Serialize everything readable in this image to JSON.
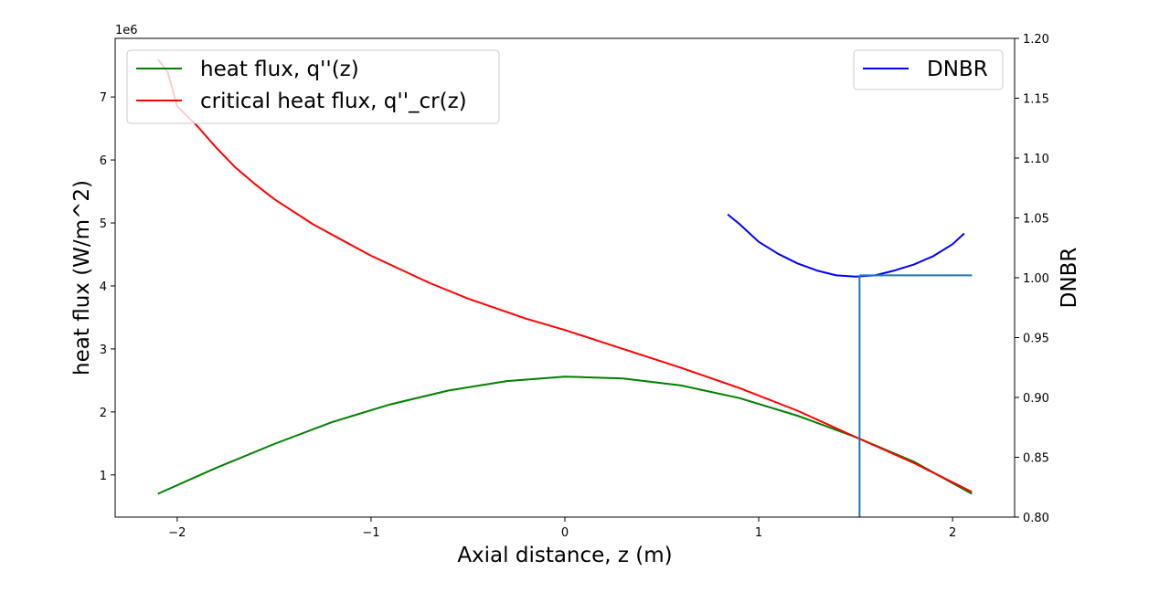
{
  "chart_data": {
    "type": "line",
    "xlabel": "Axial distance, z (m)",
    "ylabel_left": "heat flux (W/m^2)",
    "ylabel_right": "DNBR",
    "left_offset_label": "1e6",
    "xlim": [
      -2.32,
      2.32
    ],
    "ylim_left": [
      0.33,
      7.93
    ],
    "ylim_right": [
      0.8,
      1.2
    ],
    "xticks": [
      {
        "value": -2,
        "label": "−2"
      },
      {
        "value": -1,
        "label": "−1"
      },
      {
        "value": 0,
        "label": "0"
      },
      {
        "value": 1,
        "label": "1"
      },
      {
        "value": 2,
        "label": "2"
      }
    ],
    "yticks_left": [
      {
        "value": 1,
        "label": "1"
      },
      {
        "value": 2,
        "label": "2"
      },
      {
        "value": 3,
        "label": "3"
      },
      {
        "value": 4,
        "label": "4"
      },
      {
        "value": 5,
        "label": "5"
      },
      {
        "value": 6,
        "label": "6"
      },
      {
        "value": 7,
        "label": "7"
      }
    ],
    "yticks_right": [
      {
        "value": 0.8,
        "label": "0.80"
      },
      {
        "value": 0.85,
        "label": "0.85"
      },
      {
        "value": 0.9,
        "label": "0.90"
      },
      {
        "value": 0.95,
        "label": "0.95"
      },
      {
        "value": 1.0,
        "label": "1.00"
      },
      {
        "value": 1.05,
        "label": "1.05"
      },
      {
        "value": 1.1,
        "label": "1.10"
      },
      {
        "value": 1.15,
        "label": "1.15"
      },
      {
        "value": 1.2,
        "label": "1.20"
      }
    ],
    "grid": false,
    "series": [
      {
        "name": "heat flux, q''(z)",
        "axis": "left",
        "color": "#008000",
        "x": [
          -2.1,
          -1.8,
          -1.5,
          -1.2,
          -0.9,
          -0.6,
          -0.3,
          0.0,
          0.3,
          0.6,
          0.9,
          1.2,
          1.5,
          1.8,
          2.1
        ],
        "y": [
          0.7,
          1.11,
          1.49,
          1.84,
          2.12,
          2.34,
          2.49,
          2.56,
          2.53,
          2.42,
          2.22,
          1.94,
          1.6,
          1.21,
          0.7
        ]
      },
      {
        "name": "critical heat flux, q''_cr(z)",
        "axis": "left",
        "color": "#ff0000",
        "x": [
          -2.1,
          -2.05,
          -2.0,
          -1.9,
          -1.8,
          -1.7,
          -1.6,
          -1.5,
          -1.3,
          -1.0,
          -0.7,
          -0.5,
          -0.2,
          0.0,
          0.3,
          0.6,
          0.9,
          1.2,
          1.5,
          1.8,
          2.1
        ],
        "y": [
          7.6,
          7.4,
          6.85,
          6.55,
          6.2,
          5.88,
          5.62,
          5.38,
          4.98,
          4.48,
          4.05,
          3.8,
          3.48,
          3.3,
          3.0,
          2.7,
          2.38,
          2.02,
          1.6,
          1.19,
          0.73
        ]
      },
      {
        "name": "DNBR",
        "axis": "right",
        "color": "#0000ff",
        "x": [
          0.84,
          0.9,
          1.0,
          1.1,
          1.2,
          1.3,
          1.4,
          1.5,
          1.6,
          1.7,
          1.8,
          1.9,
          2.0,
          2.06
        ],
        "y": [
          1.053,
          1.045,
          1.03,
          1.02,
          1.012,
          1.006,
          1.002,
          1.001,
          1.002,
          1.006,
          1.011,
          1.018,
          1.028,
          1.037
        ]
      }
    ],
    "annotations": [
      {
        "type": "vline",
        "x": 1.52,
        "axis": "right",
        "y_from": 0.8,
        "y_to": 1.002,
        "color": "#1f77b4"
      },
      {
        "type": "hline",
        "y": 1.002,
        "axis": "right",
        "x_from": 1.52,
        "x_to": 2.1,
        "color": "#1f77b4"
      }
    ],
    "legend_left": {
      "placement": "upper-left",
      "entries": [
        "heat flux, q''(z)",
        "critical heat flux, q''_cr(z)"
      ]
    },
    "legend_right": {
      "placement": "upper-right",
      "entries": [
        "DNBR"
      ]
    }
  }
}
